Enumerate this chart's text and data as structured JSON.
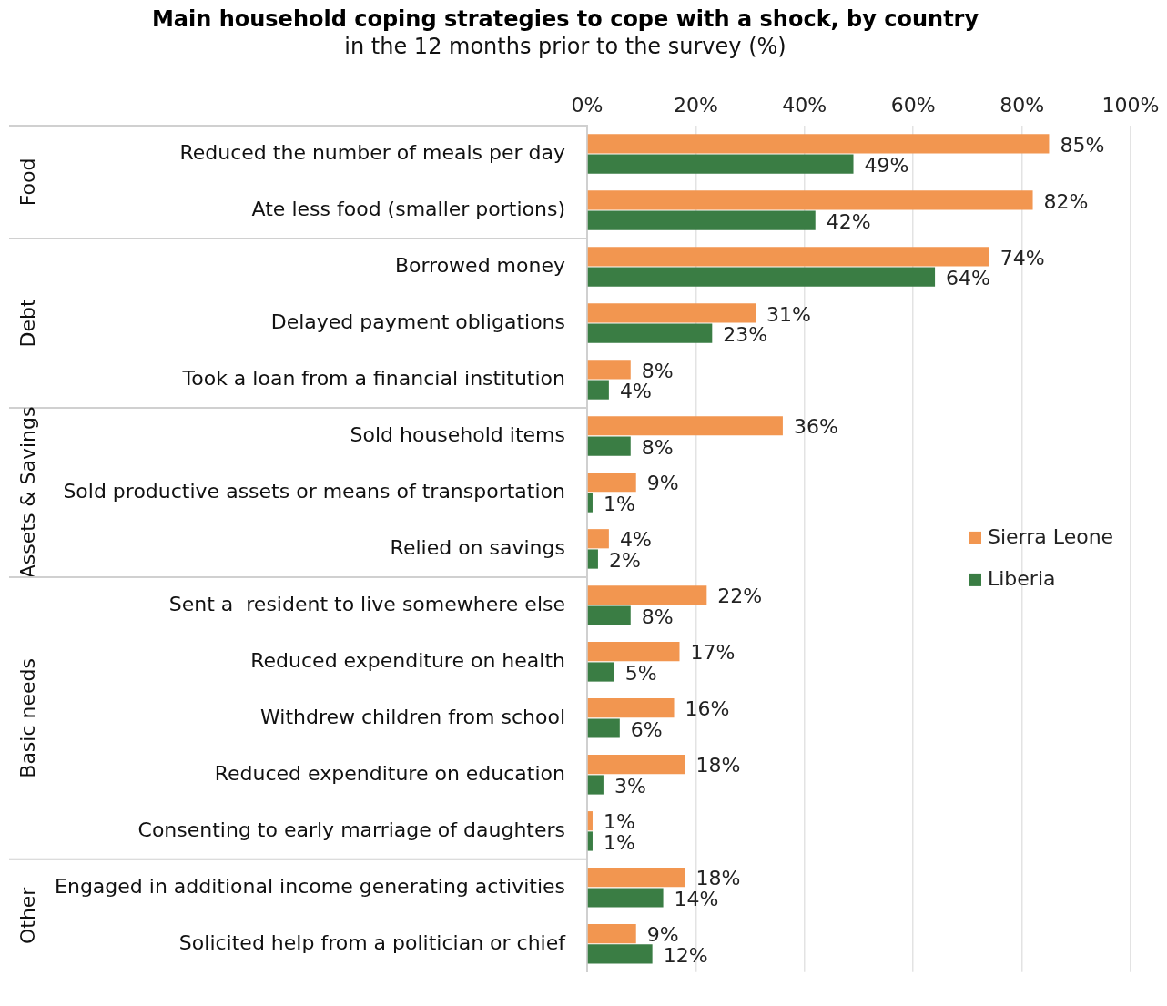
{
  "chart_data": {
    "type": "bar",
    "orientation": "horizontal",
    "title": "Main household coping strategies to cope with a shock, by country",
    "subtitle": "in the 12 months prior to the survey (%)",
    "categories": [
      "Reduced the number of meals per day",
      "Ate less food (smaller portions)",
      "Borrowed money",
      "Delayed payment obligations",
      "Took a loan from a financial institution",
      "Sold household items",
      "Sold productive assets or means of transportation",
      "Relied on savings",
      "Sent a  resident to live somewhere else",
      "Reduced expenditure on health",
      "Withdrew children from school",
      "Reduced expenditure on education",
      "Consenting to early marriage of daughters",
      "Engaged in additional income generating activities",
      "Solicited help from a politician or chief"
    ],
    "series": [
      {
        "name": "Sierra Leone",
        "color": "#f29650",
        "values": [
          85,
          82,
          74,
          31,
          8,
          36,
          9,
          4,
          22,
          17,
          16,
          18,
          1,
          18,
          9
        ],
        "value_labels": [
          "85%",
          "82%",
          "74%",
          "31%",
          "8%",
          "36%",
          "9%",
          "4%",
          "22%",
          "17%",
          "16%",
          "18%",
          "1%",
          "18%",
          "9%"
        ]
      },
      {
        "name": "Liberia",
        "color": "#3a7d44",
        "values": [
          49,
          42,
          64,
          23,
          4,
          8,
          1,
          2,
          8,
          5,
          6,
          3,
          1,
          14,
          12
        ],
        "value_labels": [
          "49%",
          "42%",
          "64%",
          "23%",
          "4%",
          "8%",
          "1%",
          "2%",
          "8%",
          "5%",
          "6%",
          "3%",
          "1%",
          "14%",
          "12%"
        ]
      }
    ],
    "xlim": [
      0,
      100
    ],
    "xticks": [
      {
        "value": 0,
        "label": "0%"
      },
      {
        "value": 20,
        "label": "20%"
      },
      {
        "value": 40,
        "label": "40%"
      },
      {
        "value": 60,
        "label": "60%"
      },
      {
        "value": 80,
        "label": "80%"
      },
      {
        "value": 100,
        "label": "100%"
      }
    ],
    "grid": "x",
    "legend": "right",
    "annotations": [
      "Food",
      "Debt",
      "Assets & Savings",
      "Basic needs",
      "Other"
    ]
  }
}
